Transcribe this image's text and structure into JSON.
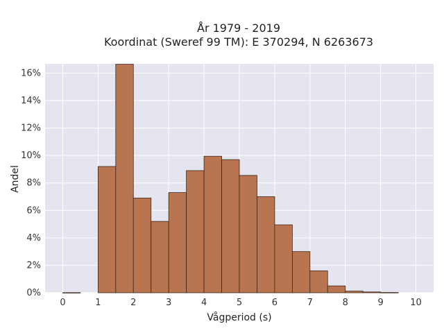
{
  "chart_data": {
    "type": "bar",
    "title_lines": [
      "År 1979 - 2019",
      "Koordinat (Sweref 99 TM): E 370294, N 6263673"
    ],
    "xlabel": "Vågperiod (s)",
    "ylabel": "Andel",
    "xlim": [
      -0.5,
      10.5
    ],
    "ylim": [
      0,
      0.1668
    ],
    "bin_width": 0.5,
    "x_ticks": [
      0,
      1,
      2,
      3,
      4,
      5,
      6,
      7,
      8,
      9,
      10
    ],
    "x_tick_labels": [
      "0",
      "1",
      "2",
      "3",
      "4",
      "5",
      "6",
      "7",
      "8",
      "9",
      "10"
    ],
    "y_ticks": [
      0,
      0.02,
      0.04,
      0.06,
      0.08,
      0.1,
      0.12,
      0.14,
      0.16
    ],
    "y_tick_labels": [
      "0%",
      "2%",
      "4%",
      "6%",
      "8%",
      "10%",
      "12%",
      "14%",
      "16%"
    ],
    "bins": [
      {
        "x0": 0.0,
        "value": 0.0001
      },
      {
        "x0": 1.0,
        "value": 0.092
      },
      {
        "x0": 1.5,
        "value": 0.1665
      },
      {
        "x0": 2.0,
        "value": 0.069
      },
      {
        "x0": 2.5,
        "value": 0.052
      },
      {
        "x0": 3.0,
        "value": 0.073
      },
      {
        "x0": 3.5,
        "value": 0.089
      },
      {
        "x0": 4.0,
        "value": 0.0995
      },
      {
        "x0": 4.5,
        "value": 0.097
      },
      {
        "x0": 5.0,
        "value": 0.0855
      },
      {
        "x0": 5.5,
        "value": 0.07
      },
      {
        "x0": 6.0,
        "value": 0.0495
      },
      {
        "x0": 6.5,
        "value": 0.03
      },
      {
        "x0": 7.0,
        "value": 0.016
      },
      {
        "x0": 7.5,
        "value": 0.005
      },
      {
        "x0": 8.0,
        "value": 0.0012
      },
      {
        "x0": 8.5,
        "value": 0.0006
      },
      {
        "x0": 9.0,
        "value": 0.0002
      }
    ],
    "grid": true,
    "colors": {
      "plot_background": "#e5e5ef",
      "grid": "#ffffff",
      "bar_fill": "#b87550",
      "bar_edge": "#3b2417"
    }
  }
}
